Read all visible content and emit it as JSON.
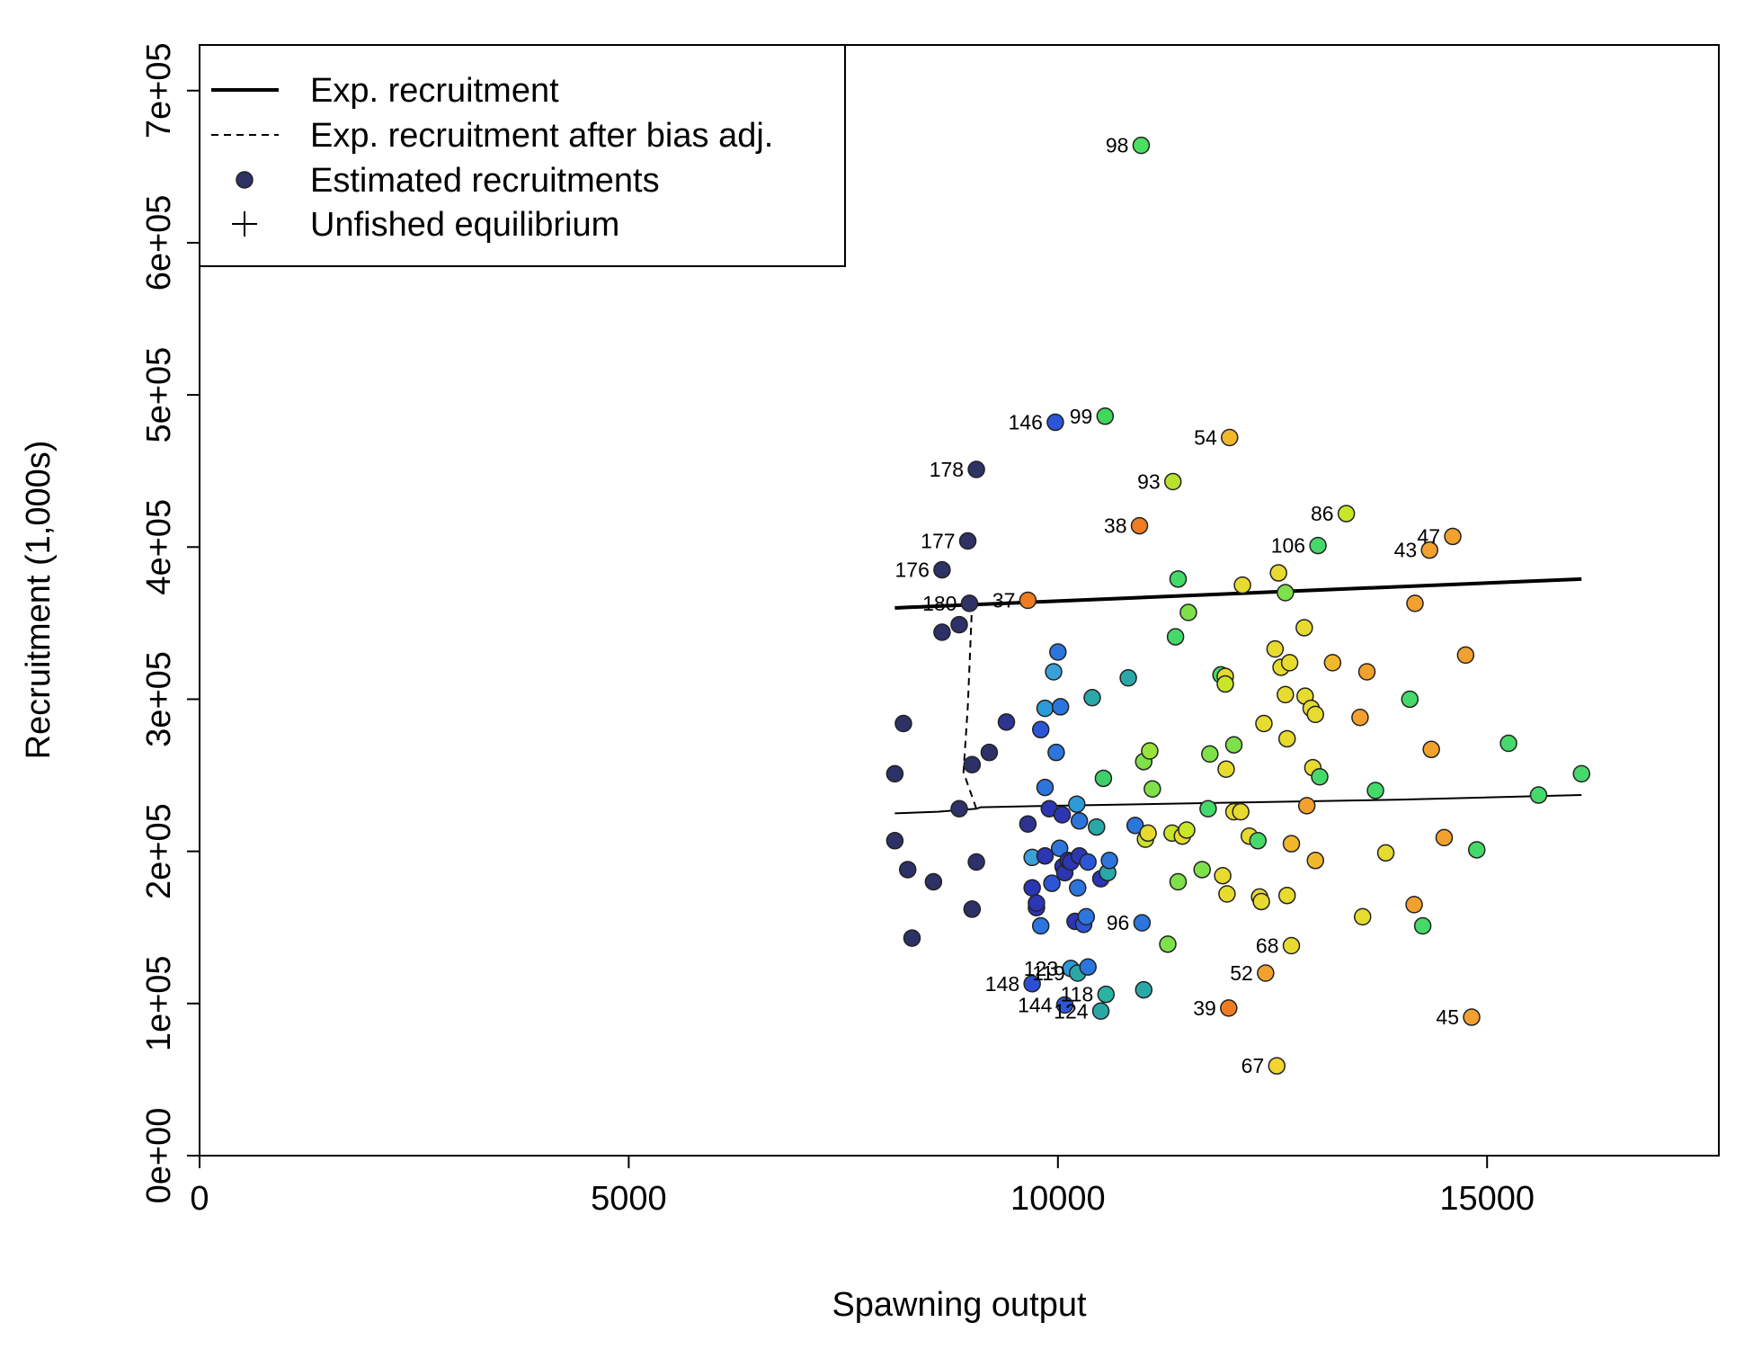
{
  "chart_data": {
    "type": "scatter",
    "xlabel": "Spawning output",
    "ylabel": "Recruitment (1,000s)",
    "xlim": [
      0,
      17700
    ],
    "ylim": [
      0,
      730000
    ],
    "x_ticks": [
      0,
      5000,
      10000,
      15000
    ],
    "x_tick_labels": [
      "0",
      "5000",
      "10000",
      "15000"
    ],
    "y_ticks": [
      0,
      100000,
      200000,
      300000,
      400000,
      500000,
      600000,
      700000
    ],
    "y_tick_labels": [
      "0e+00",
      "1e+05",
      "2e+05",
      "3e+05",
      "4e+05",
      "5e+05",
      "6e+05",
      "7e+05"
    ],
    "grid": false,
    "legend_position": "top-left",
    "legend": [
      {
        "label": "Exp. recruitment",
        "style": "thick-line"
      },
      {
        "label": "Exp. recruitment after bias adj.",
        "style": "dashed-line"
      },
      {
        "label": "Estimated recruitments",
        "style": "point"
      },
      {
        "label": "Unfished equilibrium",
        "style": "plus"
      }
    ],
    "series": [
      {
        "style": "thick-line",
        "x": [
          8100,
          16100
        ],
        "y": [
          360000,
          379000
        ]
      },
      {
        "style": "bias-adj-line",
        "x": [
          8100,
          8600,
          9050,
          9100,
          10000,
          12000,
          14000,
          16100
        ],
        "y": [
          225000,
          226000,
          228000,
          229000,
          230000,
          232000,
          234000,
          237000
        ]
      },
      {
        "style": "bias-adj-dashed",
        "x": [
          9050,
          8900,
          8950,
          9000
        ],
        "y": [
          228000,
          252000,
          295000,
          363000
        ]
      }
    ],
    "points": [
      {
        "x": 8100,
        "y": 251000,
        "color": "#2e3167"
      },
      {
        "x": 8100,
        "y": 207000,
        "color": "#2e3167"
      },
      {
        "x": 8200,
        "y": 284000,
        "color": "#2e3167"
      },
      {
        "x": 8250,
        "y": 188000,
        "color": "#2e3167"
      },
      {
        "x": 8300,
        "y": 143000,
        "color": "#2e3167"
      },
      {
        "x": 8550,
        "y": 180000,
        "color": "#2e3167"
      },
      {
        "x": 8650,
        "y": 344000,
        "color": "#2e3167"
      },
      {
        "x": 8650,
        "y": 385000,
        "color": "#2f3264",
        "label": "176"
      },
      {
        "x": 8850,
        "y": 349000,
        "color": "#2e3167"
      },
      {
        "x": 8850,
        "y": 228000,
        "color": "#2e3167"
      },
      {
        "x": 8950,
        "y": 404000,
        "color": "#2f3264",
        "label": "177"
      },
      {
        "x": 8970,
        "y": 363000,
        "color": "#2f3264",
        "label": "180"
      },
      {
        "x": 9000,
        "y": 257000,
        "color": "#2e3167"
      },
      {
        "x": 9000,
        "y": 162000,
        "color": "#2e3167"
      },
      {
        "x": 9050,
        "y": 451000,
        "color": "#2f3264",
        "label": "178"
      },
      {
        "x": 9050,
        "y": 193000,
        "color": "#2e3167"
      },
      {
        "x": 9200,
        "y": 265000,
        "color": "#2e3167"
      },
      {
        "x": 9400,
        "y": 285000,
        "color": "#2d3591"
      },
      {
        "x": 9650,
        "y": 365000,
        "color": "#ef7c22",
        "label": "37"
      },
      {
        "x": 9650,
        "y": 218000,
        "color": "#2d3591"
      },
      {
        "x": 9700,
        "y": 176000,
        "color": "#2c36b2"
      },
      {
        "x": 9700,
        "y": 196000,
        "color": "#3aa0d8"
      },
      {
        "x": 9700,
        "y": 113000,
        "color": "#2c4fd6",
        "label": "148"
      },
      {
        "x": 9750,
        "y": 163000,
        "color": "#2c36b2"
      },
      {
        "x": 9750,
        "y": 166000,
        "color": "#2c36b2"
      },
      {
        "x": 9800,
        "y": 151000,
        "color": "#2c75dc"
      },
      {
        "x": 9800,
        "y": 280000,
        "color": "#2c56d8"
      },
      {
        "x": 9850,
        "y": 197000,
        "color": "#2c36b2"
      },
      {
        "x": 9850,
        "y": 242000,
        "color": "#2c75dc"
      },
      {
        "x": 9850,
        "y": 294000,
        "color": "#2c9bd8"
      },
      {
        "x": 9900,
        "y": 228000,
        "color": "#2c36b2"
      },
      {
        "x": 9930,
        "y": 179000,
        "color": "#2c56d8"
      },
      {
        "x": 9950,
        "y": 318000,
        "color": "#3aa0d8"
      },
      {
        "x": 9970,
        "y": 482000,
        "color": "#2c56d8",
        "label": "146"
      },
      {
        "x": 9980,
        "y": 265000,
        "color": "#2c75dc"
      },
      {
        "x": 10000,
        "y": 331000,
        "color": "#2c75dc"
      },
      {
        "x": 10020,
        "y": 202000,
        "color": "#2c75dc"
      },
      {
        "x": 10030,
        "y": 295000,
        "color": "#2c75dc"
      },
      {
        "x": 10050,
        "y": 224000,
        "color": "#2c36b2"
      },
      {
        "x": 10060,
        "y": 190000,
        "color": "#2c36b2"
      },
      {
        "x": 10080,
        "y": 186000,
        "color": "#2c36b2"
      },
      {
        "x": 10080,
        "y": 99000,
        "color": "#2c56d8",
        "label": "144"
      },
      {
        "x": 10120,
        "y": 194000,
        "color": "#2c36b2"
      },
      {
        "x": 10150,
        "y": 123000,
        "color": "#2c9bd8",
        "label": "123"
      },
      {
        "x": 10150,
        "y": 193000,
        "color": "#2c36b2"
      },
      {
        "x": 10200,
        "y": 154000,
        "color": "#2c36b2"
      },
      {
        "x": 10220,
        "y": 231000,
        "color": "#2c9bd8"
      },
      {
        "x": 10230,
        "y": 120000,
        "color": "#2aa8a8",
        "label": "119"
      },
      {
        "x": 10230,
        "y": 176000,
        "color": "#2c75dc"
      },
      {
        "x": 10250,
        "y": 197000,
        "color": "#2c36b2"
      },
      {
        "x": 10250,
        "y": 220000,
        "color": "#2c75dc"
      },
      {
        "x": 10300,
        "y": 152000,
        "color": "#2c56d8"
      },
      {
        "x": 10330,
        "y": 157000,
        "color": "#2c75dc"
      },
      {
        "x": 10350,
        "y": 193000,
        "color": "#2c56d8"
      },
      {
        "x": 10350,
        "y": 124000,
        "color": "#2c75dc"
      },
      {
        "x": 10400,
        "y": 301000,
        "color": "#2aa8a8"
      },
      {
        "x": 10450,
        "y": 216000,
        "color": "#2aa8a8"
      },
      {
        "x": 10500,
        "y": 182000,
        "color": "#2c36b2"
      },
      {
        "x": 10500,
        "y": 95000,
        "color": "#2aa8a8",
        "label": "124"
      },
      {
        "x": 10530,
        "y": 248000,
        "color": "#3ccf6a"
      },
      {
        "x": 10550,
        "y": 486000,
        "color": "#3fd75c",
        "label": "99"
      },
      {
        "x": 10560,
        "y": 106000,
        "color": "#2ab3a4",
        "label": "118"
      },
      {
        "x": 10580,
        "y": 186000,
        "color": "#2aa8a8"
      },
      {
        "x": 10600,
        "y": 194000,
        "color": "#2c75dc"
      },
      {
        "x": 10820,
        "y": 314000,
        "color": "#2aa8a8"
      },
      {
        "x": 10900,
        "y": 217000,
        "color": "#2c75dc"
      },
      {
        "x": 10950,
        "y": 414000,
        "color": "#ef7c22",
        "label": "38"
      },
      {
        "x": 10970,
        "y": 664000,
        "color": "#49e061",
        "label": "98"
      },
      {
        "x": 10980,
        "y": 153000,
        "color": "#2c75dc",
        "label": "96"
      },
      {
        "x": 11000,
        "y": 259000,
        "color": "#7ee04a"
      },
      {
        "x": 11000,
        "y": 109000,
        "color": "#2aa8a8"
      },
      {
        "x": 11020,
        "y": 208000,
        "color": "#c9e52a"
      },
      {
        "x": 11050,
        "y": 212000,
        "color": "#e6db2e"
      },
      {
        "x": 11070,
        "y": 266000,
        "color": "#9ae23c"
      },
      {
        "x": 11100,
        "y": 241000,
        "color": "#7ee04a"
      },
      {
        "x": 11280,
        "y": 139000,
        "color": "#7ee04a"
      },
      {
        "x": 11330,
        "y": 212000,
        "color": "#c9e52a"
      },
      {
        "x": 11340,
        "y": 443000,
        "color": "#b8e12e",
        "label": "93"
      },
      {
        "x": 11370,
        "y": 341000,
        "color": "#45d96a"
      },
      {
        "x": 11400,
        "y": 379000,
        "color": "#45d96a"
      },
      {
        "x": 11400,
        "y": 180000,
        "color": "#7ee04a"
      },
      {
        "x": 11450,
        "y": 210000,
        "color": "#e6db2e"
      },
      {
        "x": 11500,
        "y": 214000,
        "color": "#c9e52a"
      },
      {
        "x": 11520,
        "y": 357000,
        "color": "#7ee04a"
      },
      {
        "x": 11680,
        "y": 188000,
        "color": "#7ee04a"
      },
      {
        "x": 11750,
        "y": 228000,
        "color": "#45d96a"
      },
      {
        "x": 11770,
        "y": 264000,
        "color": "#7ee04a"
      },
      {
        "x": 11900,
        "y": 316000,
        "color": "#45d96a"
      },
      {
        "x": 11920,
        "y": 184000,
        "color": "#e6db2e"
      },
      {
        "x": 11950,
        "y": 315000,
        "color": "#e6db2e"
      },
      {
        "x": 11950,
        "y": 310000,
        "color": "#c9e52a"
      },
      {
        "x": 11960,
        "y": 254000,
        "color": "#e6db2e"
      },
      {
        "x": 11970,
        "y": 172000,
        "color": "#e6db2e"
      },
      {
        "x": 11990,
        "y": 97000,
        "color": "#ef7c22",
        "label": "39"
      },
      {
        "x": 12000,
        "y": 472000,
        "color": "#f2b82c",
        "label": "54"
      },
      {
        "x": 12050,
        "y": 270000,
        "color": "#7ee04a"
      },
      {
        "x": 12050,
        "y": 226000,
        "color": "#e6db2e"
      },
      {
        "x": 12130,
        "y": 226000,
        "color": "#e6db2e"
      },
      {
        "x": 12150,
        "y": 375000,
        "color": "#e6db2e"
      },
      {
        "x": 12230,
        "y": 210000,
        "color": "#e6db2e"
      },
      {
        "x": 12330,
        "y": 207000,
        "color": "#45d96a"
      },
      {
        "x": 12350,
        "y": 170000,
        "color": "#e6db2e"
      },
      {
        "x": 12370,
        "y": 167000,
        "color": "#e6db2e"
      },
      {
        "x": 12400,
        "y": 284000,
        "color": "#e6db2e"
      },
      {
        "x": 12420,
        "y": 120000,
        "color": "#f2a02e",
        "label": "52"
      },
      {
        "x": 12530,
        "y": 333000,
        "color": "#e6db2e"
      },
      {
        "x": 12550,
        "y": 59000,
        "color": "#f2d52e",
        "label": "67"
      },
      {
        "x": 12570,
        "y": 383000,
        "color": "#e6db2e"
      },
      {
        "x": 12600,
        "y": 321000,
        "color": "#e6db2e"
      },
      {
        "x": 12650,
        "y": 370000,
        "color": "#7ee04a"
      },
      {
        "x": 12650,
        "y": 303000,
        "color": "#e6db2e"
      },
      {
        "x": 12670,
        "y": 171000,
        "color": "#e6db2e"
      },
      {
        "x": 12670,
        "y": 274000,
        "color": "#e6db2e"
      },
      {
        "x": 12700,
        "y": 324000,
        "color": "#e6db2e"
      },
      {
        "x": 12720,
        "y": 205000,
        "color": "#f2b82c"
      },
      {
        "x": 12720,
        "y": 138000,
        "color": "#e6db2e",
        "label": "68"
      },
      {
        "x": 12870,
        "y": 347000,
        "color": "#e6db2e"
      },
      {
        "x": 12880,
        "y": 302000,
        "color": "#e6db2e"
      },
      {
        "x": 12900,
        "y": 230000,
        "color": "#f2a02e"
      },
      {
        "x": 12950,
        "y": 294000,
        "color": "#e6db2e"
      },
      {
        "x": 12970,
        "y": 255000,
        "color": "#e6db2e"
      },
      {
        "x": 13000,
        "y": 290000,
        "color": "#e6db2e"
      },
      {
        "x": 13000,
        "y": 194000,
        "color": "#f2b82c"
      },
      {
        "x": 13030,
        "y": 401000,
        "color": "#45d96a",
        "label": "106"
      },
      {
        "x": 13050,
        "y": 249000,
        "color": "#45d96a"
      },
      {
        "x": 13200,
        "y": 324000,
        "color": "#f2b82c"
      },
      {
        "x": 13360,
        "y": 422000,
        "color": "#c9e52a",
        "label": "86"
      },
      {
        "x": 13520,
        "y": 288000,
        "color": "#f2a02e"
      },
      {
        "x": 13550,
        "y": 157000,
        "color": "#e6db2e"
      },
      {
        "x": 13600,
        "y": 318000,
        "color": "#f2a02e"
      },
      {
        "x": 13700,
        "y": 240000,
        "color": "#45d96a"
      },
      {
        "x": 13820,
        "y": 199000,
        "color": "#e6db2e"
      },
      {
        "x": 14100,
        "y": 300000,
        "color": "#45d96a"
      },
      {
        "x": 14150,
        "y": 165000,
        "color": "#f2a02e"
      },
      {
        "x": 14160,
        "y": 363000,
        "color": "#f2a02e"
      },
      {
        "x": 14250,
        "y": 151000,
        "color": "#45d96a"
      },
      {
        "x": 14330,
        "y": 398000,
        "color": "#f2a02e",
        "label": "43"
      },
      {
        "x": 14350,
        "y": 267000,
        "color": "#f2a02e"
      },
      {
        "x": 14500,
        "y": 209000,
        "color": "#f2a02e"
      },
      {
        "x": 14600,
        "y": 407000,
        "color": "#f2a02e",
        "label": "47"
      },
      {
        "x": 14750,
        "y": 329000,
        "color": "#f2a02e"
      },
      {
        "x": 14820,
        "y": 91000,
        "color": "#f2a02e",
        "label": "45"
      },
      {
        "x": 14880,
        "y": 201000,
        "color": "#45d96a"
      },
      {
        "x": 15250,
        "y": 271000,
        "color": "#45d96a"
      },
      {
        "x": 15600,
        "y": 237000,
        "color": "#45d96a"
      },
      {
        "x": 16100,
        "y": 251000,
        "color": "#45d96a"
      }
    ]
  }
}
